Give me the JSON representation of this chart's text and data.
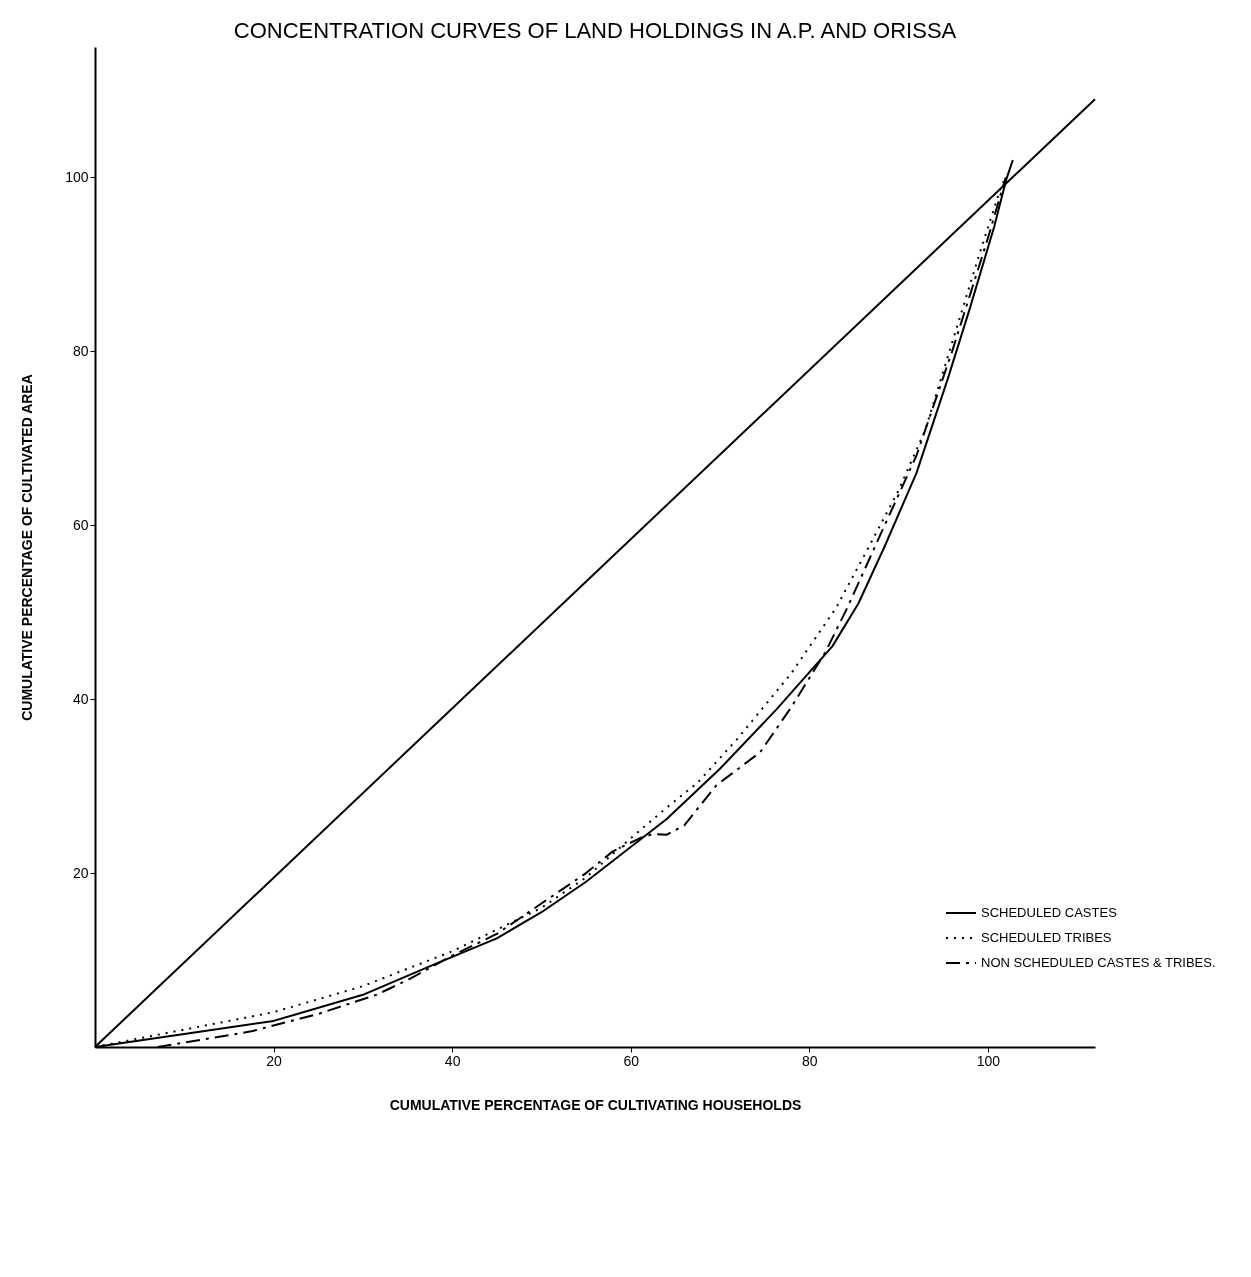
{
  "chart_data": {
    "type": "line",
    "title": "CONCENTRATION CURVES OF LAND HOLDINGS IN A.P. AND ORISSA",
    "xlabel": "CUMULATIVE PERCENTAGE OF CULTIVATING HOUSEHOLDS",
    "ylabel": "CUMULATIVE PERCENTAGE OF CULTIVATED AREA",
    "xlim": [
      0,
      112
    ],
    "ylim": [
      0,
      115
    ],
    "xticks": [
      20,
      40,
      60,
      80,
      100
    ],
    "yticks": [
      20,
      40,
      60,
      80,
      100
    ],
    "grid": false,
    "legend": "bottom right",
    "marker": "none",
    "series": [
      {
        "color": "#000000",
        "line_style": "solid",
        "x": [
          0,
          112
        ],
        "values": [
          0,
          109
        ]
      },
      {
        "name": "SCHEDULED CASTES",
        "color": "#000000",
        "line_style": "solid",
        "x": [
          0,
          10,
          20,
          30,
          38,
          45,
          50,
          55,
          60,
          64,
          70,
          76.3,
          82.6,
          85.5,
          88.5,
          92,
          95.5,
          98,
          100.7,
          102.1,
          102.8
        ],
        "values": [
          0,
          1.5,
          3,
          6,
          9.5,
          12.5,
          15.5,
          19,
          23,
          26.2,
          32,
          38.8,
          46.1,
          51,
          57.7,
          66,
          76.8,
          85,
          94.3,
          99.9,
          102
        ]
      },
      {
        "name": "SCHEDULED TRIBES",
        "color": "#000000",
        "line_style": "dotted",
        "x": [
          0,
          10,
          20,
          30,
          40,
          50,
          55,
          60,
          64,
          67.5,
          72,
          78,
          83,
          86.4,
          90,
          93,
          96,
          99,
          101.5,
          102
        ],
        "values": [
          0,
          2,
          4,
          7,
          11,
          16,
          19.5,
          24,
          27.5,
          30.4,
          35.5,
          43,
          50.5,
          57,
          64,
          71,
          81,
          91,
          99,
          100
        ]
      },
      {
        "name": "NON SCHEDULED CASTES & TRIBES.",
        "color": "#000000",
        "line_style": "dashdot",
        "x": [
          7,
          17.5,
          25,
          31.5,
          35,
          40,
          45,
          50,
          55,
          58,
          61,
          62.5,
          64,
          66,
          69.6,
          74.5,
          78,
          81.8,
          84.3,
          88,
          92,
          96,
          100,
          102
        ],
        "values": [
          0,
          1.8,
          3.8,
          6,
          7.7,
          10.5,
          13,
          16.5,
          20,
          22.5,
          24,
          24.5,
          24.4,
          25.5,
          30.1,
          33.9,
          39.1,
          45.4,
          50.6,
          59,
          68,
          80,
          93,
          100
        ]
      }
    ]
  }
}
